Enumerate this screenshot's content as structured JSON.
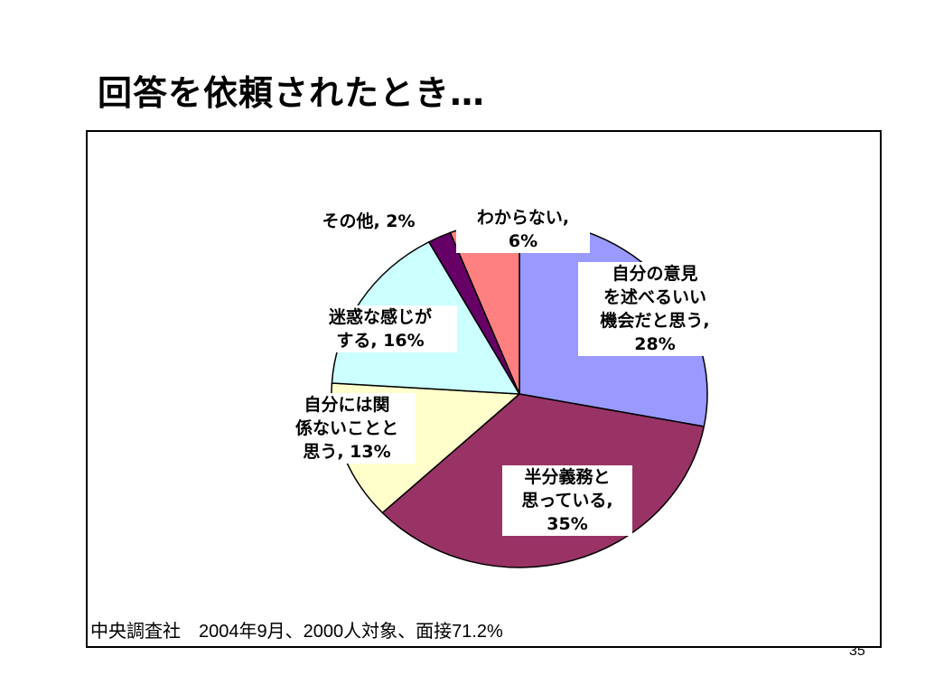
{
  "slide": {
    "title": "回答を依頼されたとき…",
    "source_note": "中央調査社　2004年9月、2000人対象、面接71.2%",
    "page_number": "35"
  },
  "chart_data": {
    "type": "pie",
    "start_angle_deg": 0,
    "direction": "clockwise",
    "slices": [
      {
        "name": "自分の意見を述べるいい機会だと思う",
        "value": 28,
        "color": "#9999ff",
        "label_lines": [
          "自分の意見",
          "を述べるいい",
          "機会だと思う,",
          "28%"
        ]
      },
      {
        "name": "半分義務と思っている",
        "value": 35,
        "color": "#993366",
        "label_lines": [
          "半分義務と",
          "思っている,",
          "35%"
        ]
      },
      {
        "name": "自分には関係ないことと思う",
        "value": 13,
        "color": "#ffffcc",
        "label_lines": [
          "自分には関",
          "係ないことと",
          "思う, 13%"
        ]
      },
      {
        "name": "迷惑な感じがする",
        "value": 16,
        "color": "#ccffff",
        "label_lines": [
          "迷惑な感じが",
          "する, 16%"
        ]
      },
      {
        "name": "その他",
        "value": 2,
        "color": "#660066",
        "label_lines": [
          "その他, 2%"
        ]
      },
      {
        "name": "わからない",
        "value": 6,
        "color": "#ff8080",
        "label_lines": [
          "わからない,",
          "6%"
        ]
      }
    ]
  }
}
